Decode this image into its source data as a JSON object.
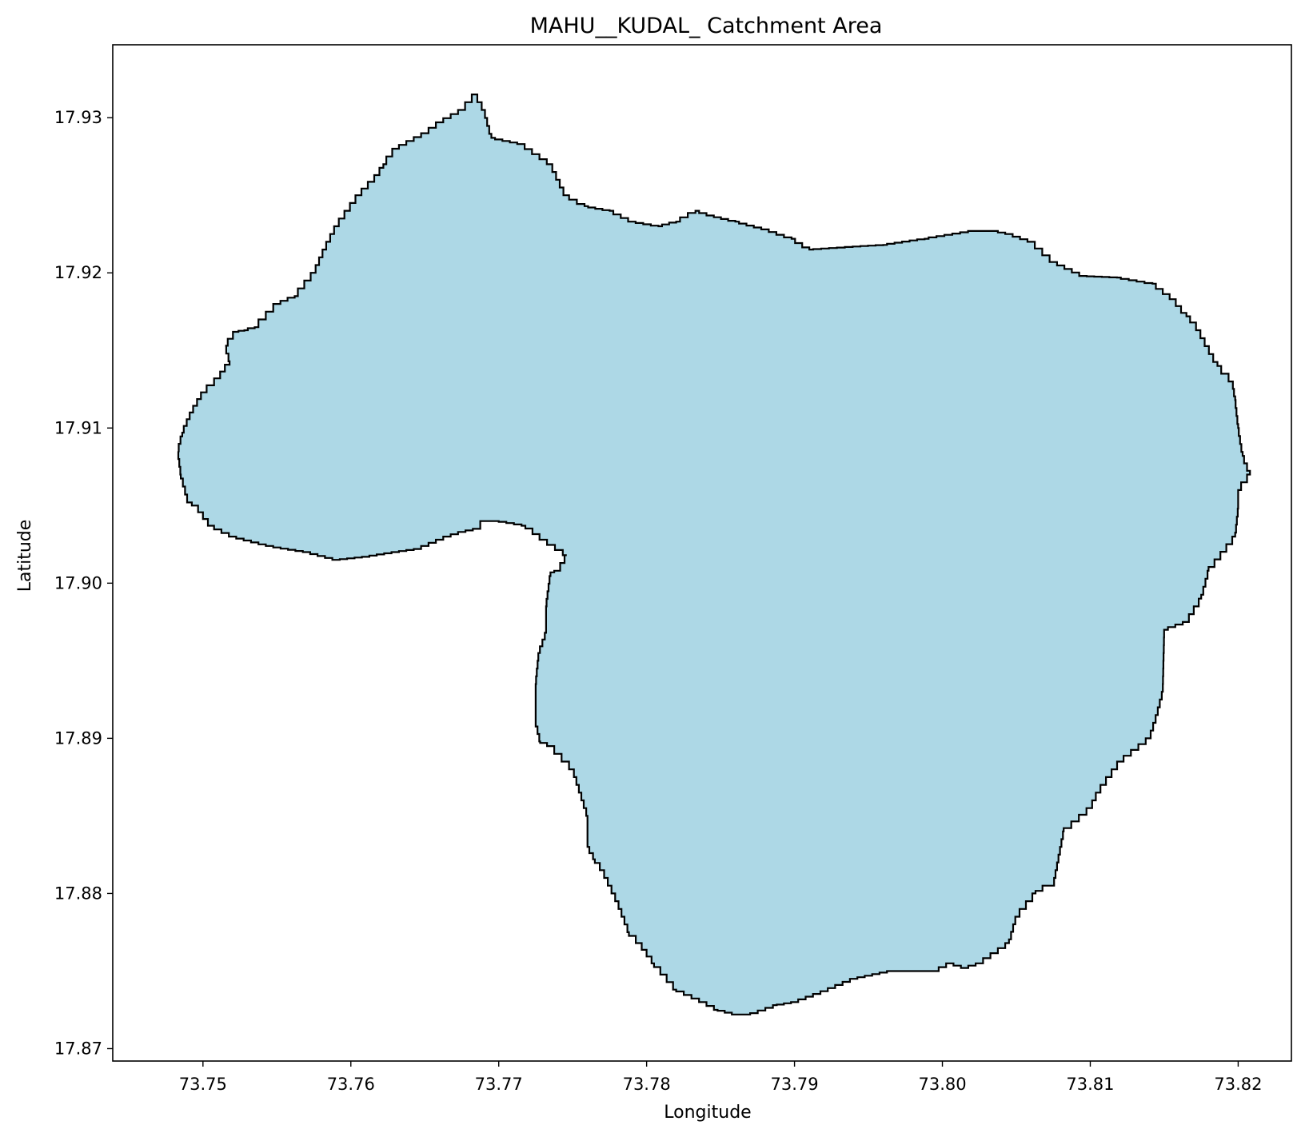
{
  "chart_data": {
    "type": "area",
    "title": "MAHU__KUDAL_ Catchment Area",
    "xlabel": "Longitude",
    "ylabel": "Latitude",
    "xlim": [
      73.7439,
      73.8236
    ],
    "ylim": [
      17.8692,
      17.9347
    ],
    "xticks": [
      "73.75",
      "73.76",
      "73.77",
      "73.78",
      "73.79",
      "73.80",
      "73.81",
      "73.82"
    ],
    "yticks": [
      "17.87",
      "17.88",
      "17.89",
      "17.90",
      "17.91",
      "17.92",
      "17.93"
    ],
    "grid": false,
    "fill_color": "#add8e6",
    "edge_color": "#000000",
    "series": [
      {
        "x": [
          73.7684,
          73.769,
          73.7695,
          73.7715,
          73.7735,
          73.7745,
          73.7758,
          73.7775,
          73.779,
          73.7808,
          73.782,
          73.7833,
          73.7843,
          73.786,
          73.788,
          73.7898,
          73.791,
          73.7942,
          73.796,
          73.7988,
          73.802,
          73.8035,
          73.8045,
          73.806,
          73.8075,
          73.8095,
          73.8118,
          73.8142,
          73.8156,
          73.8165,
          73.817,
          73.8173,
          73.8186,
          73.8196,
          73.8198,
          73.82,
          73.8203,
          73.8208,
          73.82,
          73.82,
          73.8198,
          73.818,
          73.8175,
          73.8165,
          73.815,
          73.8149,
          73.8145,
          73.814,
          73.812,
          73.8105,
          73.81,
          73.8082,
          73.8075,
          73.807,
          73.8063,
          73.805,
          73.8045,
          73.8025,
          73.8015,
          73.8005,
          73.7995,
          73.7965,
          73.795,
          73.794,
          73.792,
          73.79,
          73.7888,
          73.787,
          73.786,
          73.7848,
          73.7838,
          73.782,
          73.7805,
          73.7795,
          73.7788,
          73.778,
          73.777,
          73.7765,
          73.776,
          73.776,
          73.775,
          73.7735,
          73.7728,
          73.7725,
          73.7725,
          73.7727,
          73.7732,
          73.7732,
          73.7735,
          73.774,
          73.7746,
          73.773,
          73.7718,
          73.77,
          73.769,
          73.7685,
          73.7685,
          73.7675,
          73.7665,
          73.7645,
          73.763,
          73.761,
          73.759,
          73.757,
          73.755,
          73.754,
          73.752,
          73.7505,
          73.7495,
          73.749,
          73.7485,
          73.7483,
          73.7486,
          73.7492,
          73.75,
          73.751,
          73.7518,
          73.7515,
          73.7522,
          73.7528,
          73.7535,
          73.755,
          73.7562,
          73.7575,
          73.7582,
          73.759,
          73.7605,
          73.7618,
          73.7622,
          73.763,
          73.765,
          73.766,
          73.7675
        ],
        "y": [
          17.9315,
          17.9305,
          17.9287,
          17.9283,
          17.927,
          17.925,
          17.9243,
          17.924,
          17.9233,
          17.923,
          17.9233,
          17.924,
          17.9237,
          17.9233,
          17.9228,
          17.9222,
          17.9215,
          17.9217,
          17.9218,
          17.9222,
          17.9227,
          17.9227,
          17.9225,
          17.922,
          17.9207,
          17.9198,
          17.9197,
          17.9193,
          17.9183,
          17.9172,
          17.9168,
          17.9163,
          17.914,
          17.913,
          17.9118,
          17.91,
          17.9082,
          17.907,
          17.906,
          17.9048,
          17.903,
          17.9008,
          17.899,
          17.8975,
          17.897,
          17.893,
          17.8915,
          17.89,
          17.8885,
          17.8865,
          17.8855,
          17.884,
          17.8805,
          17.8805,
          17.88,
          17.8785,
          17.8768,
          17.8755,
          17.8752,
          17.8755,
          17.875,
          17.875,
          17.8747,
          17.8745,
          17.8737,
          17.873,
          17.8728,
          17.8722,
          17.8722,
          17.8725,
          17.873,
          17.8738,
          17.8755,
          17.8768,
          17.8775,
          17.8795,
          17.8815,
          17.8822,
          17.883,
          17.885,
          17.888,
          17.8895,
          17.8898,
          17.891,
          17.8935,
          17.8955,
          17.8968,
          17.8985,
          17.9007,
          17.9008,
          17.9018,
          17.9028,
          17.9037,
          17.904,
          17.904,
          17.9035,
          17.9035,
          17.9033,
          17.903,
          17.9022,
          17.902,
          17.9017,
          17.9015,
          17.902,
          17.9023,
          17.9025,
          17.903,
          17.9037,
          17.905,
          17.9052,
          17.907,
          17.9085,
          17.9097,
          17.911,
          17.9123,
          17.9132,
          17.9143,
          17.9153,
          17.9162,
          17.9163,
          17.9165,
          17.918,
          17.9185,
          17.92,
          17.9215,
          17.923,
          17.925,
          17.9263,
          17.927,
          17.928,
          17.929,
          17.9297,
          17.9305
        ]
      }
    ]
  }
}
